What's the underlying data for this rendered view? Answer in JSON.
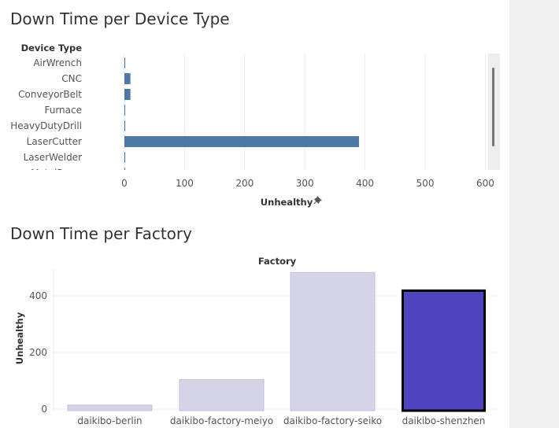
{
  "section1": {
    "title": "Down Time per Device Type"
  },
  "section2": {
    "title": "Down Time per Factory"
  },
  "pin_icon": "pin-icon",
  "chart_data": [
    {
      "type": "bar",
      "orientation": "horizontal",
      "row_header": "Device Type",
      "categories": [
        "AirWrench",
        "CNC",
        "ConveyorBelt",
        "Furnace",
        "HeavyDutyDrill",
        "LaserCutter",
        "LaserWelder",
        "MetalPress"
      ],
      "values": [
        1,
        10,
        10,
        1,
        1,
        390,
        1,
        1
      ],
      "xlabel": "Unhealthy",
      "xlim": [
        0,
        600
      ],
      "xticks": [
        0,
        100,
        200,
        300,
        400,
        500,
        600
      ],
      "bar_color": "#4e79a7",
      "grid": true
    },
    {
      "type": "bar",
      "orientation": "vertical",
      "column_header": "Factory",
      "categories": [
        "daikibo-berlin",
        "daikibo-factory-meiyo",
        "daikibo-factory-seiko",
        "daikibo-shenzhen"
      ],
      "values": [
        20,
        110,
        488,
        428
      ],
      "ylabel": "Unhealthy",
      "yticks": [
        0,
        200,
        400
      ],
      "bar_color": "#d5d3e7",
      "selected_color": "#4f44be",
      "selected_index": 3,
      "grid": true
    }
  ]
}
